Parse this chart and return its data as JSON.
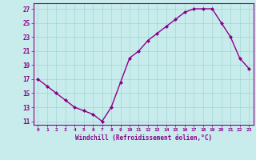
{
  "x": [
    0,
    1,
    2,
    3,
    4,
    5,
    6,
    7,
    8,
    9,
    10,
    11,
    12,
    13,
    14,
    15,
    16,
    17,
    18,
    19,
    20,
    21,
    22,
    23
  ],
  "y": [
    17,
    16,
    15,
    14,
    13,
    12.5,
    12,
    11,
    13,
    16.5,
    20,
    21,
    22.5,
    23.5,
    24.5,
    25.5,
    26.5,
    27,
    27,
    27,
    25,
    23,
    20,
    18.5
  ],
  "line_color": "#8B008B",
  "marker_color": "#8B008B",
  "bg_color": "#c8ecec",
  "grid_color": "#a8d8d8",
  "xlabel": "Windchill (Refroidissement éolien,°C)",
  "ylabel_ticks": [
    11,
    13,
    15,
    17,
    19,
    21,
    23,
    25,
    27
  ],
  "xlim": [
    -0.5,
    23.5
  ],
  "ylim": [
    10.5,
    27.8
  ],
  "xticks": [
    0,
    1,
    2,
    3,
    4,
    5,
    6,
    7,
    8,
    9,
    10,
    11,
    12,
    13,
    14,
    15,
    16,
    17,
    18,
    19,
    20,
    21,
    22,
    23
  ]
}
